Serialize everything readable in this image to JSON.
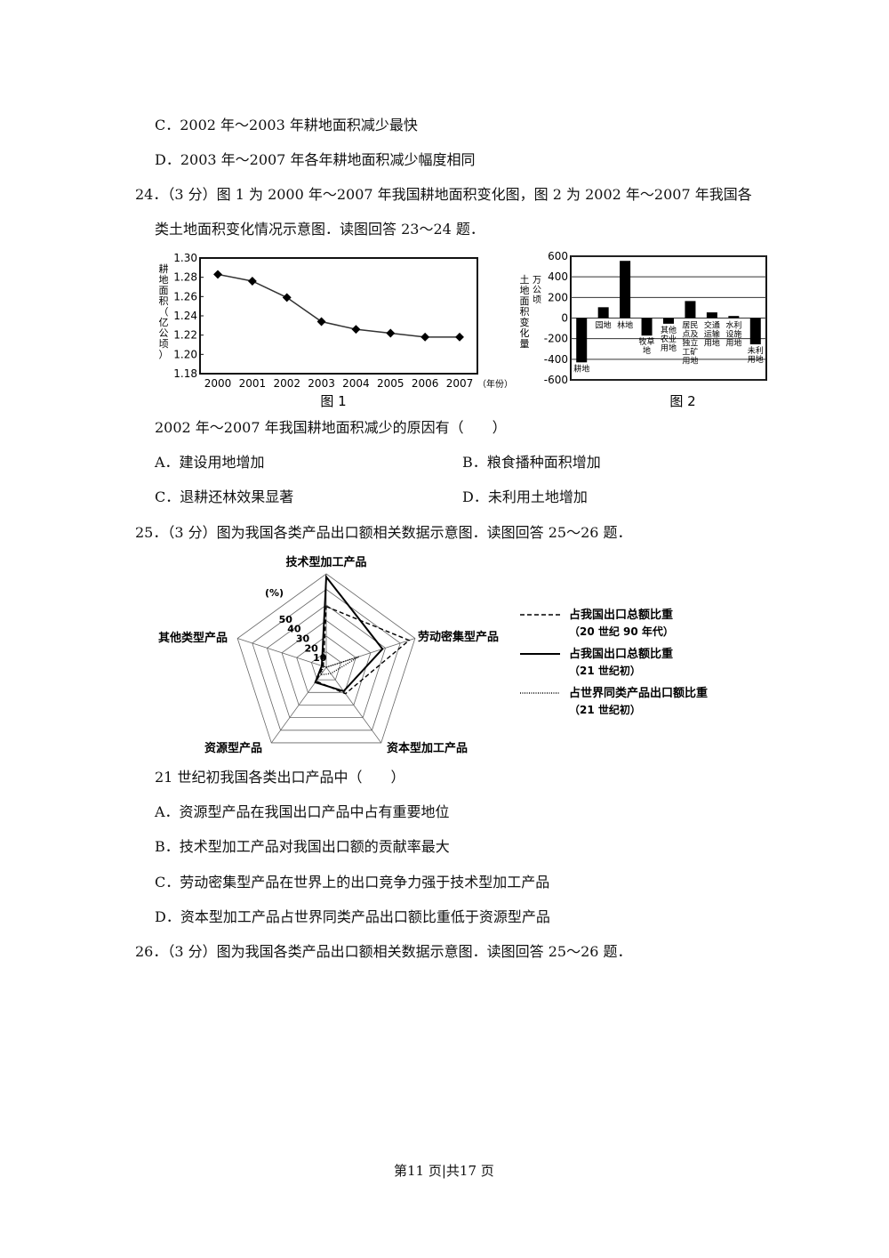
{
  "q23_options": {
    "C": "C．2002 年～2003 年耕地面积减少最快",
    "D": "D．2003 年～2007 年各年耕地面积减少幅度相同"
  },
  "q24": {
    "stem_line1": "24．（3 分）图 1 为 2000 年～2007 年我国耕地面积变化图，图 2 为 2002 年～2007 年我国各",
    "stem_line2": "类土地面积变化情况示意图．读图回答 23～24 题．",
    "question": "2002 年～2007 年我国耕地面积减少的原因有（　　）",
    "options": [
      "A．建设用地增加",
      "B．粮食播种面积增加",
      "C．退耕还林效果显著",
      "D．未利用土地增加"
    ]
  },
  "q25": {
    "stem": "25．（3 分）图为我国各类产品出口额相关数据示意图．读图回答 25～26 题．",
    "question": "21 世纪初我国各类出口产品中（　　）",
    "options": [
      "A．资源型产品在我国出口产品中占有重要地位",
      "B．技术型加工产品对我国出口额的贡献率最大",
      "C．劳动密集型产品在世界上的出口竞争力强于技术型加工产品",
      "D．资本型加工产品占世界同类产品出口额比重低于资源型产品"
    ]
  },
  "q26": {
    "stem": "26．（3 分）图为我国各类产品出口额相关数据示意图．读图回答 25～26 题．"
  },
  "footer": "第11 页|共17 页",
  "chart_data": [
    {
      "type": "line",
      "caption": "图 1",
      "ylabel": "耕地面积（亿公顷）",
      "xlabel": "（年份）",
      "ylim": [
        1.18,
        1.3
      ],
      "yticks": [
        "1.18",
        "1.20",
        "1.22",
        "1.24",
        "1.26",
        "1.28",
        "1.30"
      ],
      "x": [
        "2000",
        "2001",
        "2002",
        "2003",
        "2004",
        "2005",
        "2006",
        "2007"
      ],
      "values": [
        1.283,
        1.276,
        1.259,
        1.234,
        1.226,
        1.222,
        1.218,
        1.218
      ]
    },
    {
      "type": "bar",
      "caption": "图 2",
      "ylabel": "土地面积变化量（万公顷）",
      "ylim": [
        -600,
        600
      ],
      "yticks": [
        "600",
        "400",
        "200",
        "0",
        "-200",
        "-400",
        "-600"
      ],
      "categories": [
        "耕地",
        "园地",
        "林地",
        "牧草地",
        "其他农业用地",
        "居民点及独立工矿用地",
        "交通运输用地",
        "水利设施用地",
        "未利用地"
      ],
      "values": [
        -430,
        105,
        555,
        -170,
        -55,
        165,
        55,
        20,
        -255
      ]
    },
    {
      "type": "radar",
      "unit": "(%)",
      "rlim": [
        0,
        60
      ],
      "rticks": [
        "10",
        "20",
        "30",
        "40",
        "50"
      ],
      "axes": [
        "技术型加工产品",
        "劳动密集型产品",
        "资本型加工产品",
        "资源型产品",
        "其他类型产品"
      ],
      "series": [
        {
          "name": "占我国出口总额比重",
          "sub": "（20 世纪 90 年代）",
          "style": "dashed",
          "values": [
            39,
            56,
            21,
            11,
            2
          ]
        },
        {
          "name": "占我国出口总额比重",
          "sub": "（21 世纪初）",
          "style": "solid",
          "values": [
            58,
            38,
            19,
            12,
            3
          ]
        },
        {
          "name": "占世界同类产品出口额比重",
          "sub": "（21 世纪初）",
          "style": "dotted",
          "values": [
            0,
            22,
            5,
            6,
            2
          ]
        }
      ]
    }
  ]
}
